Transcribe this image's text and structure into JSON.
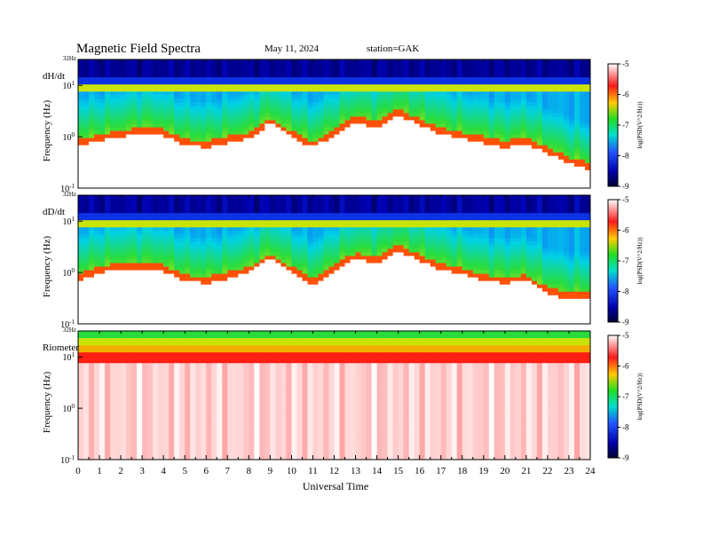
{
  "header": {
    "title": "Magnetic  Field  Spectra",
    "date": "May 11, 2024",
    "station": "station=GAK"
  },
  "x_axis": {
    "label": "Universal Time",
    "ticks": [
      "0",
      "1",
      "2",
      "3",
      "4",
      "5",
      "6",
      "7",
      "8",
      "9",
      "10",
      "11",
      "12",
      "13",
      "14",
      "15",
      "16",
      "17",
      "18",
      "19",
      "20",
      "21",
      "22",
      "23",
      "24"
    ]
  },
  "chart_data": [
    {
      "type": "heatmap",
      "panel": "dH/dt",
      "ylabel": "Frequency  (Hz)",
      "ytop_label": "32Hz",
      "ytick_labels": [
        "10^1",
        "10^0",
        "10^-1"
      ],
      "x_range_hours": [
        0,
        24
      ],
      "y_scale": "log",
      "y_range_hz": [
        0.1,
        32
      ],
      "colorbar": {
        "label": "log(PSD(V^2/Hz))",
        "range": [
          -9,
          -5
        ],
        "ticks": [
          "-5",
          "-6",
          "-7",
          "-8",
          "-9"
        ]
      },
      "ridge_freq_hz_by_hour": [
        0.9,
        1.1,
        1.3,
        1.6,
        1.4,
        0.9,
        0.8,
        1.0,
        1.2,
        2.4,
        1.3,
        0.8,
        1.4,
        2.5,
        2.0,
        3.5,
        2.2,
        1.5,
        1.2,
        1.0,
        0.8,
        1.0,
        0.6,
        0.4,
        0.3
      ]
    },
    {
      "type": "heatmap",
      "panel": "dD/dt",
      "ylabel": "Frequency  (Hz)",
      "ytop_label": "32Hz",
      "ytick_labels": [
        "10^1",
        "10^0",
        "10^-1"
      ],
      "x_range_hours": [
        0,
        24
      ],
      "y_scale": "log",
      "y_range_hz": [
        0.1,
        32
      ],
      "colorbar": {
        "label": "log(PSD(V^2/Hz))",
        "range": [
          -9,
          -5
        ],
        "ticks": [
          "-5",
          "-6",
          "-7",
          "-8",
          "-9"
        ]
      },
      "ridge_freq_hz_by_hour": [
        0.9,
        1.3,
        1.5,
        1.5,
        1.4,
        0.9,
        0.8,
        1.0,
        1.3,
        2.4,
        1.3,
        0.7,
        1.4,
        2.4,
        2.0,
        3.5,
        2.2,
        1.5,
        1.2,
        0.9,
        0.8,
        0.9,
        0.5,
        0.4,
        0.4
      ]
    },
    {
      "type": "heatmap",
      "panel": "Riometer",
      "ylabel": "Frequency  (Hz)",
      "ytop_label": "32Hz",
      "ytick_labels": [
        "10^1",
        "10^0",
        "10^-1"
      ],
      "x_range_hours": [
        0,
        24
      ],
      "y_scale": "log",
      "y_range_hz": [
        0.1,
        32
      ],
      "colorbar": {
        "label": "log(PSD(V^2/Hz))",
        "range": [
          -9,
          -5
        ],
        "ticks": [
          "-5",
          "-6",
          "-7",
          "-8",
          "-9"
        ]
      },
      "ridge_freq_hz_by_hour": [
        12,
        12,
        12,
        12,
        12,
        12,
        12,
        12,
        12,
        12,
        12,
        12,
        12,
        12,
        12,
        12,
        12,
        12,
        12,
        12,
        12,
        12,
        12,
        12,
        12
      ]
    }
  ]
}
